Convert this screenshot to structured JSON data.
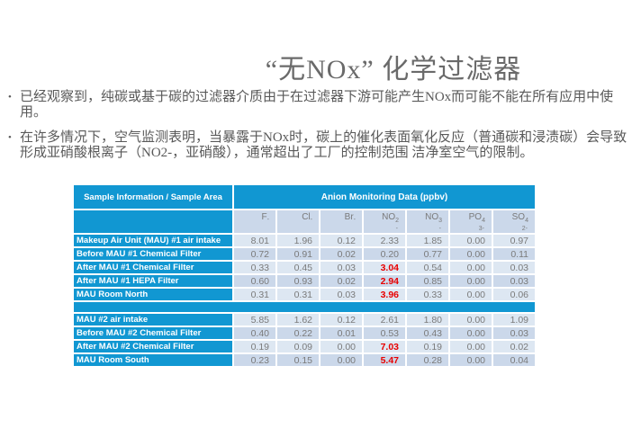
{
  "title": "“无NOx” 化学过滤器",
  "bullet_char": "•",
  "bullets": [
    "已经观察到，纯碳或基于碳的过滤器介质由于在过滤器下游可能产生NOx而可能不能在所有应用中使用。",
    "在许多情况下，空气监测表明，当暴露于NOx时，碳上的催化表面氧化反应（普通碳和浸渍碳）会导致形成亚硝酸根离子（NO2-，亚硝酸），通常超出了工厂的控制范围 洁净室空气的限制。"
  ],
  "colors": {
    "header_blue": "#1197d2",
    "row_light": "#dde7f2",
    "row_dark": "#cbd8ea",
    "value_text": "#7a7a7a",
    "red_value": "#e80000"
  },
  "table": {
    "corner_header": "Sample Information / Sample Area",
    "data_header": "Anion Monitoring Data (ppbv)",
    "ions": [
      {
        "base": "F",
        "sub": "",
        "charge": "-"
      },
      {
        "base": "Cl",
        "sub": "",
        "charge": "-"
      },
      {
        "base": "Br",
        "sub": "",
        "charge": "-"
      },
      {
        "base": "NO",
        "sub": "2",
        "charge": "-"
      },
      {
        "base": "NO",
        "sub": "3",
        "charge": "-"
      },
      {
        "base": "PO",
        "sub": "4",
        "charge": "3-"
      },
      {
        "base": "SO",
        "sub": "4",
        "charge": "2-"
      }
    ],
    "groups": [
      {
        "rows": [
          {
            "label": "Makeup Air Unit (MAU) #1 air intake",
            "values": [
              "8.01",
              "1.96",
              "0.12",
              "2.33",
              "1.85",
              "0.00",
              "0.97"
            ],
            "red": []
          },
          {
            "label": "Before MAU #1 Chemical Filter",
            "values": [
              "0.72",
              "0.91",
              "0.02",
              "0.20",
              "0.77",
              "0.00",
              "0.11"
            ],
            "red": []
          },
          {
            "label": "After MAU #1 Chemical Filter",
            "values": [
              "0.33",
              "0.45",
              "0.03",
              "3.04",
              "0.54",
              "0.00",
              "0.03"
            ],
            "red": [
              3
            ]
          },
          {
            "label": "After MAU #1 HEPA Filter",
            "values": [
              "0.60",
              "0.93",
              "0.02",
              "2.94",
              "0.85",
              "0.00",
              "0.03"
            ],
            "red": [
              3
            ]
          },
          {
            "label": "MAU Room North",
            "values": [
              "0.31",
              "0.31",
              "0.03",
              "3.96",
              "0.33",
              "0.00",
              "0.06"
            ],
            "red": [
              3
            ]
          }
        ]
      },
      {
        "rows": [
          {
            "label": "MAU #2 air intake",
            "values": [
              "5.85",
              "1.62",
              "0.12",
              "2.61",
              "1.80",
              "0.00",
              "1.09"
            ],
            "red": []
          },
          {
            "label": "Before MAU #2 Chemical Filter",
            "values": [
              "0.40",
              "0.22",
              "0.01",
              "0.53",
              "0.43",
              "0.00",
              "0.03"
            ],
            "red": []
          },
          {
            "label": "After MAU #2 Chemical Filter",
            "values": [
              "0.19",
              "0.09",
              "0.00",
              "7.03",
              "0.19",
              "0.00",
              "0.02"
            ],
            "red": [
              3
            ]
          },
          {
            "label": "MAU Room South",
            "values": [
              "0.23",
              "0.15",
              "0.00",
              "5.47",
              "0.28",
              "0.00",
              "0.04"
            ],
            "red": [
              3
            ]
          }
        ]
      }
    ]
  }
}
